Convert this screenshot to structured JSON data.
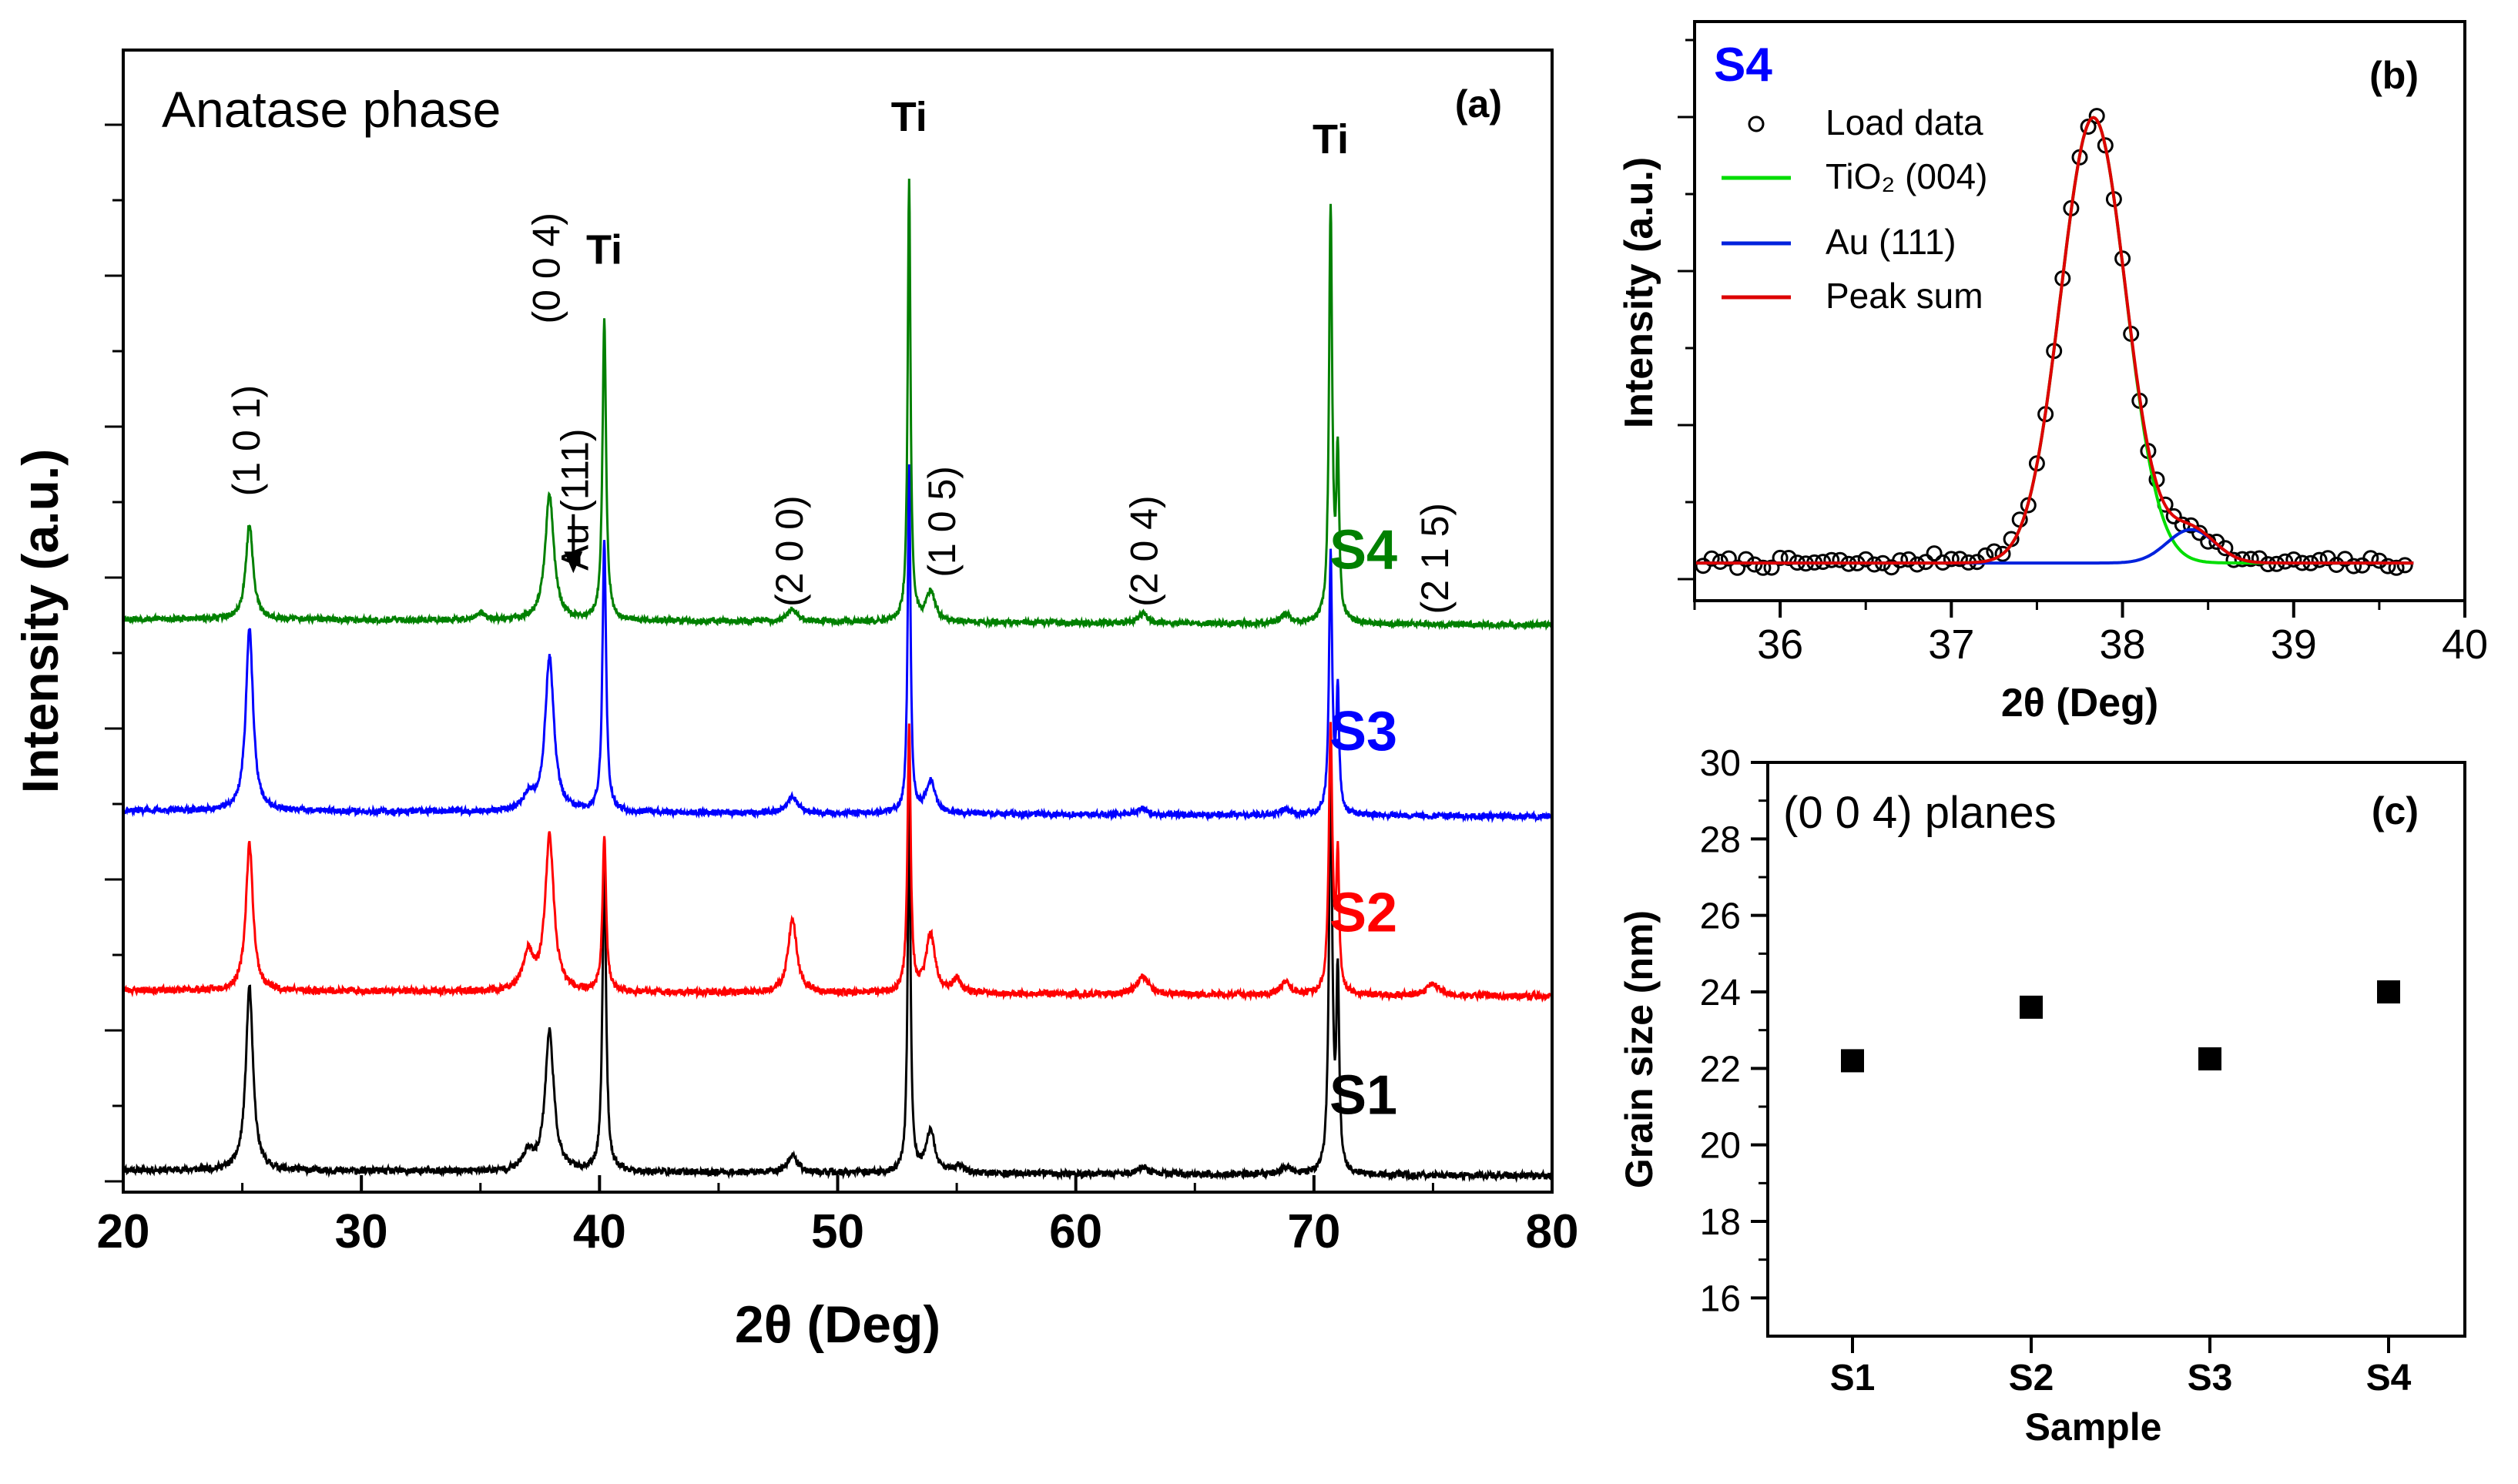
{
  "colors": {
    "axis": "#000000",
    "S1": "#000000",
    "S2": "#ff0000",
    "S3": "#0000ff",
    "S4": "#008000",
    "fit_tio2": "#00dd00",
    "fit_au": "#0022dd",
    "fit_sum": "#dd0000",
    "label_s4": "#0000ff"
  },
  "chart_data": [
    {
      "id": "a",
      "type": "line",
      "panel_label": "(a)",
      "title": "Anatase phase",
      "xlabel": "2θ (Deg)",
      "ylabel": "Intensity (a.u.)",
      "xlim": [
        20,
        80
      ],
      "x_ticks": [
        20,
        30,
        40,
        50,
        60,
        70,
        80
      ],
      "y_ticks_shown": false,
      "series": [
        {
          "name": "S1",
          "color": "#000000",
          "baseline": 0.0,
          "noise": 0.045,
          "seed": 11,
          "bg_drop": 0.04,
          "peaks": [
            [
              25.3,
              1.25,
              0.18
            ],
            [
              37.0,
              0.12,
              0.25
            ],
            [
              37.9,
              0.95,
              0.22
            ],
            [
              40.2,
              2.1,
              0.09
            ],
            [
              48.1,
              0.12,
              0.25
            ],
            [
              53.0,
              2.55,
              0.07
            ],
            [
              53.9,
              0.28,
              0.22
            ],
            [
              55.1,
              0.06,
              0.2
            ],
            [
              62.8,
              0.05,
              0.25
            ],
            [
              68.8,
              0.05,
              0.25
            ],
            [
              70.7,
              2.8,
              0.08
            ],
            [
              71.0,
              1.3,
              0.07
            ]
          ]
        },
        {
          "name": "S2",
          "color": "#ff0000",
          "baseline": 1.22,
          "noise": 0.045,
          "seed": 23,
          "bg_drop": 0.04,
          "peaks": [
            [
              25.3,
              1.0,
              0.18
            ],
            [
              37.0,
              0.25,
              0.25
            ],
            [
              37.9,
              1.05,
              0.22
            ],
            [
              40.2,
              1.05,
              0.09
            ],
            [
              48.1,
              0.5,
              0.22
            ],
            [
              53.0,
              1.8,
              0.08
            ],
            [
              53.9,
              0.4,
              0.22
            ],
            [
              55.0,
              0.1,
              0.2
            ],
            [
              62.8,
              0.12,
              0.3
            ],
            [
              68.8,
              0.08,
              0.25
            ],
            [
              70.7,
              1.8,
              0.09
            ],
            [
              71.0,
              0.9,
              0.07
            ],
            [
              75.0,
              0.08,
              0.3
            ]
          ]
        },
        {
          "name": "S3",
          "color": "#0000ff",
          "baseline": 2.44,
          "noise": 0.04,
          "seed": 37,
          "bg_drop": 0.04,
          "peaks": [
            [
              25.3,
              1.25,
              0.18
            ],
            [
              37.0,
              0.1,
              0.25
            ],
            [
              37.9,
              1.05,
              0.22
            ],
            [
              40.2,
              1.85,
              0.09
            ],
            [
              48.1,
              0.12,
              0.25
            ],
            [
              53.0,
              2.35,
              0.07
            ],
            [
              53.9,
              0.22,
              0.22
            ],
            [
              62.8,
              0.04,
              0.25
            ],
            [
              68.8,
              0.04,
              0.25
            ],
            [
              70.7,
              1.75,
              0.08
            ],
            [
              71.0,
              0.8,
              0.07
            ]
          ]
        },
        {
          "name": "S4",
          "color": "#008000",
          "baseline": 3.74,
          "noise": 0.04,
          "seed": 53,
          "bg_drop": 0.04,
          "peaks": [
            [
              25.3,
              0.65,
              0.18
            ],
            [
              35.0,
              0.05,
              0.2
            ],
            [
              37.9,
              0.85,
              0.22
            ],
            [
              40.2,
              2.05,
              0.09
            ],
            [
              48.1,
              0.08,
              0.25
            ],
            [
              53.0,
              3.0,
              0.07
            ],
            [
              53.9,
              0.2,
              0.22
            ],
            [
              62.8,
              0.06,
              0.25
            ],
            [
              68.8,
              0.06,
              0.25
            ],
            [
              70.7,
              2.8,
              0.08
            ],
            [
              71.0,
              1.1,
              0.07
            ]
          ]
        }
      ],
      "series_labels": [
        {
          "text": "S1",
          "x": 73.5,
          "y": 0.38,
          "color": "#000000"
        },
        {
          "text": "S2",
          "x": 73.5,
          "y": 1.62,
          "color": "#ff0000"
        },
        {
          "text": "S3",
          "x": 73.5,
          "y": 2.85,
          "color": "#0000ff"
        },
        {
          "text": "S4",
          "x": 73.5,
          "y": 4.08,
          "color": "#008000"
        }
      ],
      "annotations": [
        {
          "text": "(1 0 1)",
          "x": 25.3,
          "y": 4.95,
          "rotate": -90
        },
        {
          "text": "(0 0 4)",
          "x": 37.9,
          "y": 6.12,
          "rotate": -90
        },
        {
          "text": "Au (111)",
          "x": 39.1,
          "y": 4.55,
          "rotate": -90
        },
        {
          "text": "Ti",
          "x": 40.2,
          "y": 6.15,
          "rotate": 0,
          "bold": true
        },
        {
          "text": "(2 0 0)",
          "x": 48.1,
          "y": 4.2,
          "rotate": -90
        },
        {
          "text": "Ti",
          "x": 53.0,
          "y": 7.05,
          "rotate": 0,
          "bold": true
        },
        {
          "text": "(1 0 5)",
          "x": 54.5,
          "y": 4.4,
          "rotate": -90
        },
        {
          "text": "(2 0 4)",
          "x": 63.0,
          "y": 4.2,
          "rotate": -90
        },
        {
          "text": "Ti",
          "x": 70.7,
          "y": 6.9,
          "rotate": 0,
          "bold": true
        },
        {
          "text": "(2 1 5)",
          "x": 75.2,
          "y": 4.15,
          "rotate": -90
        }
      ],
      "arrow": {
        "x": 38.9,
        "y_from": 4.45,
        "y_to": 4.05
      }
    },
    {
      "id": "b",
      "type": "scatter",
      "panel_label": "(b)",
      "sample_label": "S4",
      "xlabel": "2θ (Deg)",
      "ylabel": "Intensity (a.u.)",
      "xlim": [
        35.5,
        40
      ],
      "ylim": [
        -0.05,
        1.25
      ],
      "x_ticks": [
        36,
        37,
        38,
        39,
        40
      ],
      "y_ticks_shown": false,
      "legend": [
        "Load data",
        "TiO₂ (004)",
        "Au (111)",
        "Peak sum"
      ],
      "legend_placement": "top-left",
      "fit": {
        "tio2_center": 37.83,
        "tio2_amp": 1.0,
        "tio2_sigma": 0.19,
        "au_center": 38.4,
        "au_amp": 0.075,
        "au_sigma": 0.14
      },
      "data_points": {
        "x_start": 35.55,
        "x_end": 39.65,
        "step": 0.05,
        "noise": 0.012,
        "seed": 7
      }
    },
    {
      "id": "c",
      "type": "scatter",
      "panel_label": "(c)",
      "title": "(0 0 4) planes",
      "xlabel": "Sample",
      "ylabel": "Grain size (nm)",
      "categories": [
        "S1",
        "S2",
        "S3",
        "S4"
      ],
      "values": [
        22.2,
        23.6,
        22.25,
        24.0
      ],
      "ylim": [
        15,
        30
      ],
      "y_ticks": [
        16,
        18,
        20,
        22,
        24,
        26,
        28,
        30
      ]
    }
  ]
}
